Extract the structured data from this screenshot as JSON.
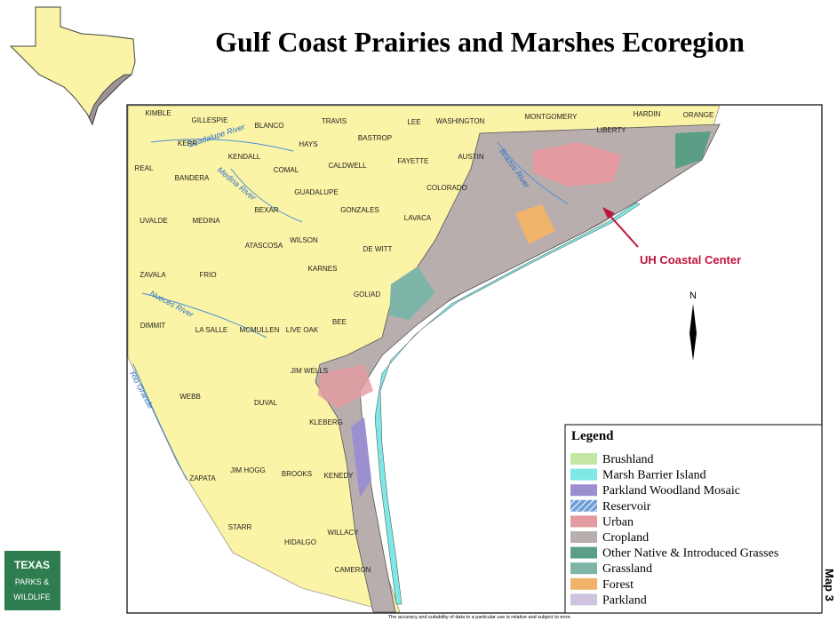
{
  "title": "Gulf Coast Prairies and Marshes Ecoregion",
  "counties": [
    "KIMBLE",
    "GILLESPIE",
    "BLANCO",
    "TRAVIS",
    "LEE",
    "WASHINGTON",
    "MONTGOMERY",
    "HARDIN",
    "ORANGE",
    "KERR",
    "KENDALL",
    "HAYS",
    "BASTROP",
    "LIBERTY",
    "REAL",
    "COMAL",
    "CALDWELL",
    "FAYETTE",
    "AUSTIN",
    "BANDERA",
    "GUADALUPE",
    "COLORADO",
    "BEXAR",
    "GONZALES",
    "LAVACA",
    "UVALDE",
    "MEDINA",
    "WILSON",
    "DE WITT",
    "ZAVALA",
    "FRIO",
    "ATASCOSA",
    "KARNES",
    "GOLIAD",
    "DIMMIT",
    "LA SALLE",
    "MCMULLEN",
    "LIVE OAK",
    "BEE",
    "JIM WELLS",
    "WEBB",
    "DUVAL",
    "KLEBERG",
    "ZAPATA",
    "JIM HOGG",
    "BROOKS",
    "KENEDY",
    "STARR",
    "HIDALGO",
    "WILLACY",
    "CAMERON"
  ],
  "rivers": [
    "Guadalupe River",
    "Medina River",
    "Brazos River",
    "Nueces River",
    "Rio Grande"
  ],
  "annotation": "UH Coastal Center",
  "north_arrow": "N",
  "legend": {
    "title": "Legend",
    "items": [
      {
        "label": "Brushland",
        "color": "#c6e6a5"
      },
      {
        "label": "Marsh Barrier Island",
        "color": "#7de8e6"
      },
      {
        "label": "Parkland Woodland Mosaic",
        "color": "#9b8fd0"
      },
      {
        "label": "Reservoir",
        "color": "#6f9fd8",
        "hatched": true
      },
      {
        "label": "Urban",
        "color": "#e39aa0"
      },
      {
        "label": "Cropland",
        "color": "#b8aeae"
      },
      {
        "label": "Other Native & Introduced Grasses",
        "color": "#5a9e86"
      },
      {
        "label": "Grassland",
        "color": "#7fb5a8"
      },
      {
        "label": "Forest",
        "color": "#f0b36a"
      },
      {
        "label": "Parkland",
        "color": "#cfc3df"
      }
    ]
  },
  "logo": {
    "lines": [
      "TEXAS",
      "PARKS &",
      "WILDLIFE"
    ]
  },
  "map_label": "Map 3",
  "disclaimer": "The accuracy and suitability of data to a particular use is relative and subject to error."
}
